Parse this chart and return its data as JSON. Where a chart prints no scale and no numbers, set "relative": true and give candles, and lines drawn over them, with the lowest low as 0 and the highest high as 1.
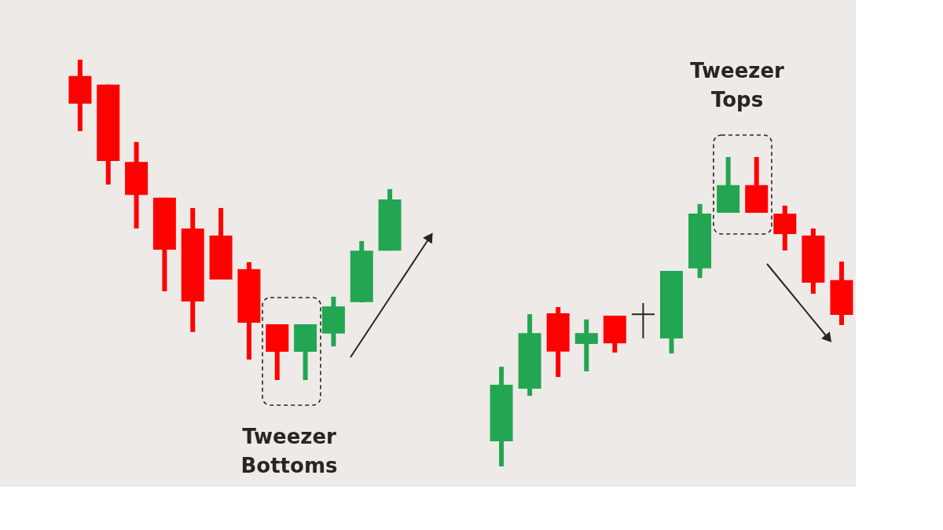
{
  "chart_data": [
    {
      "type": "candlestick",
      "relative": true,
      "tick_labels": false,
      "annotations": [
        "Tweezer Bottoms"
      ],
      "categories": [
        null,
        null,
        null,
        null,
        null,
        null,
        null,
        null,
        null,
        null,
        null,
        null
      ],
      "ohlc": [
        [
          0.949,
          1,
          0.777,
          0.863
        ],
        [
          0.922,
          0.922,
          0.61,
          0.684
        ],
        [
          0.681,
          0.743,
          0.473,
          0.578
        ],
        [
          0.569,
          0.569,
          0.277,
          0.407
        ],
        [
          0.473,
          0.537,
          0.15,
          0.245
        ],
        [
          0.451,
          0.537,
          0.314,
          0.314
        ],
        [
          0.346,
          0.368,
          0.064,
          0.179
        ],
        [
          0.174,
          0.174,
          0,
          0.088
        ],
        [
          0.088,
          0.174,
          0,
          0.174
        ],
        [
          0.145,
          0.26,
          0.105,
          0.23
        ],
        [
          0.243,
          0.434,
          0.243,
          0.404
        ],
        [
          0.404,
          0.596,
          0.404,
          0.564
        ]
      ],
      "colors": [
        "#ff0000",
        "#ff0000",
        "#ff0000",
        "#ff0000",
        "#ff0000",
        "#ff0000",
        "#ff0000",
        "#ff0000",
        "#22a652",
        "#22a652",
        "#22a652",
        "#22a652"
      ]
    },
    {
      "type": "candlestick",
      "relative": true,
      "tick_labels": false,
      "annotations": [
        "Tweezer Tops"
      ],
      "categories": [
        null,
        null,
        null,
        null,
        null,
        null,
        null,
        null,
        null,
        null,
        null,
        null,
        null
      ],
      "ohlc": [
        [
          0.081,
          0.322,
          0,
          0.264
        ],
        [
          0.251,
          0.492,
          0.228,
          0.431
        ],
        [
          0.495,
          0.515,
          0.289,
          0.371
        ],
        [
          0.396,
          0.475,
          0.307,
          0.431
        ],
        [
          0.487,
          0.487,
          0.368,
          0.398
        ],
        [
          0.492,
          0.528,
          0.414,
          0.492
        ],
        [
          0.414,
          0.632,
          0.365,
          0.632
        ],
        [
          0.64,
          0.848,
          0.609,
          0.817
        ],
        [
          0.82,
          1,
          0.82,
          0.909
        ],
        [
          0.909,
          1,
          0.82,
          0.82
        ],
        [
          0.817,
          0.843,
          0.698,
          0.751
        ],
        [
          0.746,
          0.769,
          0.558,
          0.594
        ],
        [
          0.602,
          0.662,
          0.457,
          0.49
        ]
      ],
      "colors": [
        "#22a652",
        "#22a652",
        "#ff0000",
        "#22a652",
        "#ff0000",
        "#2b2522",
        "#22a652",
        "#22a652",
        "#22a652",
        "#ff0000",
        "#ff0000",
        "#ff0000",
        "#ff0000"
      ]
    }
  ]
}
